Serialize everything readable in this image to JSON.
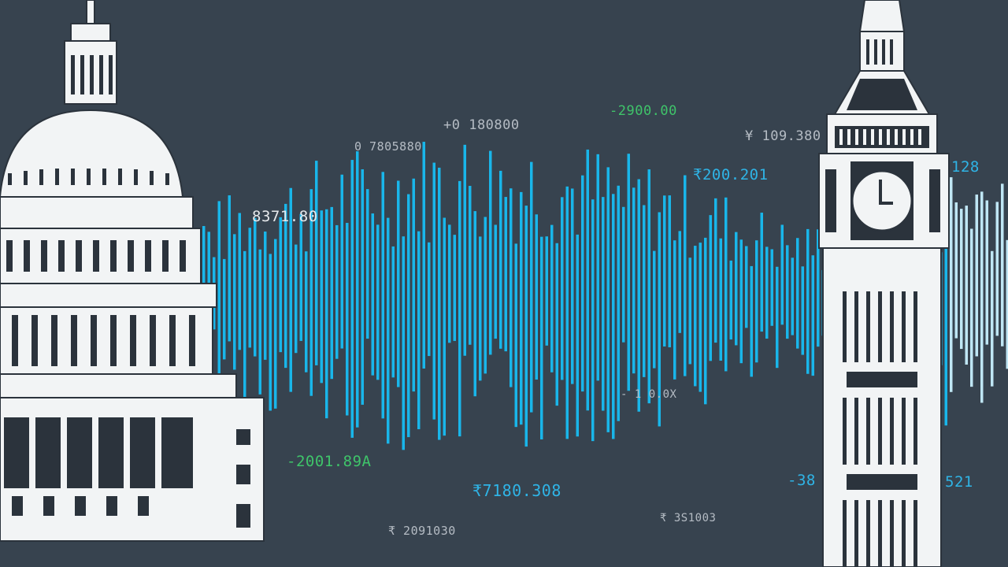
{
  "colors": {
    "background": "#37434f",
    "wave": "#19b6ea",
    "green": "#3fc46a",
    "grey": "#b5bcc4",
    "building": "#f2f4f5"
  },
  "labels": [
    {
      "text": "+0 180800",
      "tone": "grey"
    },
    {
      "text": "0 7805880",
      "tone": "grey"
    },
    {
      "text": "-2900.00",
      "tone": "green"
    },
    {
      "text": "¥ 109.380",
      "tone": "grey"
    },
    {
      "text": "₹200.201",
      "tone": "blue"
    },
    {
      "text": "128",
      "tone": "blue"
    },
    {
      "text": "8371.80",
      "tone": "grey"
    },
    {
      "text": "- 1 0.0X",
      "tone": "grey"
    },
    {
      "text": "-2001.89A",
      "tone": "green"
    },
    {
      "text": "₹7180.308",
      "tone": "blue"
    },
    {
      "text": "₹ 3S1003",
      "tone": "grey"
    },
    {
      "text": "₹ 2091030",
      "tone": "grey"
    },
    {
      "text": "-38",
      "tone": "blue"
    },
    {
      "text": "521",
      "tone": "blue"
    }
  ]
}
